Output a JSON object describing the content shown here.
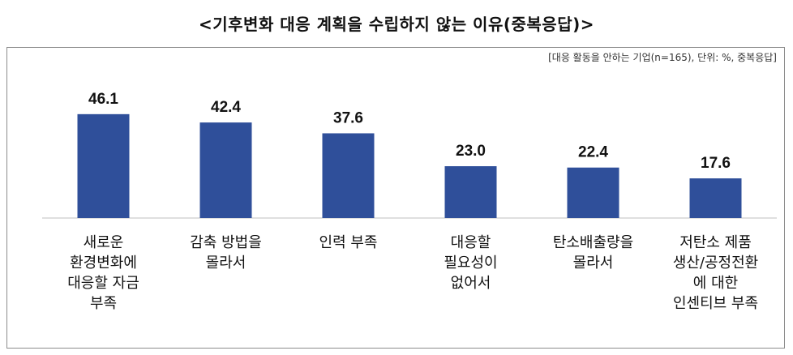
{
  "title": "<기후변화 대응 계획을 수립하지 않는 이유(중복응답)>",
  "note": "[대응 활동을 안하는 기업(n=165), 단위: %, 중복응답]",
  "colors": {
    "bar": "#2f4f9a",
    "axis": "#bfbfbf",
    "text": "#111111"
  },
  "chart_data": {
    "type": "bar",
    "title": "<기후변화 대응 계획을 수립하지 않는 이유(중복응답)>",
    "xlabel": "",
    "ylabel": "",
    "ylim": [
      0,
      50
    ],
    "grid": false,
    "categories": [
      [
        "새로운",
        "환경변화에",
        "대응할 자금",
        "부족"
      ],
      [
        "감축 방법을",
        "몰라서"
      ],
      [
        "인력 부족"
      ],
      [
        "대응할",
        "필요성이",
        "없어서"
      ],
      [
        "탄소배출량을",
        "몰라서"
      ],
      [
        "저탄소 제품",
        "생산/공정전환",
        "에 대한",
        "인센티브 부족"
      ]
    ],
    "values": [
      46.1,
      42.4,
      37.6,
      23.0,
      22.4,
      17.6
    ],
    "value_labels": [
      "46.1",
      "42.4",
      "37.6",
      "23.0",
      "22.4",
      "17.6"
    ]
  }
}
